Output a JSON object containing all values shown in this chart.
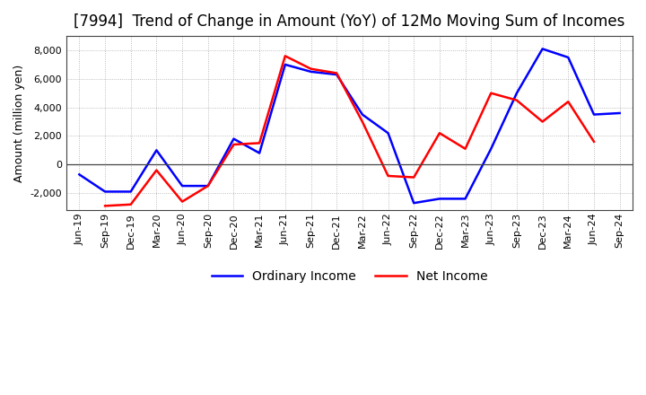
{
  "title": "[7994]  Trend of Change in Amount (YoY) of 12Mo Moving Sum of Incomes",
  "ylabel": "Amount (million yen)",
  "x_labels": [
    "Jun-19",
    "Sep-19",
    "Dec-19",
    "Mar-20",
    "Jun-20",
    "Sep-20",
    "Dec-20",
    "Mar-21",
    "Jun-21",
    "Sep-21",
    "Dec-21",
    "Mar-22",
    "Jun-22",
    "Sep-22",
    "Dec-22",
    "Mar-23",
    "Jun-23",
    "Sep-23",
    "Dec-23",
    "Mar-24",
    "Jun-24",
    "Sep-24"
  ],
  "ordinary_income": [
    -700,
    -1900,
    -1900,
    1000,
    -1500,
    -1500,
    1800,
    800,
    7000,
    6500,
    6300,
    3500,
    2200,
    -2700,
    -2400,
    -2400,
    1100,
    5000,
    8100,
    7500,
    3500,
    3600
  ],
  "net_income": [
    null,
    -2900,
    -2800,
    -400,
    -2600,
    -1500,
    1400,
    1500,
    7600,
    6700,
    6400,
    3000,
    -800,
    -900,
    2200,
    1100,
    5000,
    4500,
    3000,
    4400,
    1600,
    null
  ],
  "ordinary_color": "#0000ff",
  "net_color": "#ff0000",
  "line_width": 1.8,
  "ylim": [
    -3200,
    9000
  ],
  "yticks": [
    -2000,
    0,
    2000,
    4000,
    6000,
    8000
  ],
  "background_color": "#ffffff",
  "grid_color": "#aaaaaa",
  "legend_labels": [
    "Ordinary Income",
    "Net Income"
  ],
  "title_fontsize": 12,
  "axis_fontsize": 9,
  "tick_fontsize": 8
}
